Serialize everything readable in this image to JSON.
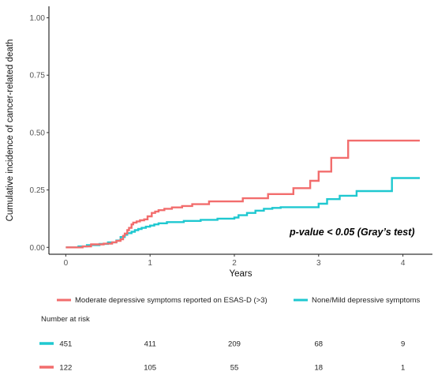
{
  "chart_data": {
    "type": "line",
    "step": true,
    "xlabel": "Years",
    "ylabel": "Cumulative incidence of cancer-related death",
    "xlim": [
      -0.2,
      4.35
    ],
    "ylim": [
      -0.03,
      1.05
    ],
    "x_ticks": [
      0,
      1,
      2,
      3,
      4
    ],
    "y_ticks": [
      0,
      0.25,
      0.5,
      0.75,
      1
    ],
    "y_tick_labels": [
      "0.00",
      "0.25",
      "0.50",
      "0.75",
      "1.00"
    ],
    "grid": false,
    "annotation": "p-value < 0.05 (Gray’s test)",
    "legend_position": "bottom",
    "series": [
      {
        "name": "Moderate depressive symptoms reported on ESAS-D (>3)",
        "color": "#f26d6d",
        "points": [
          [
            0,
            0
          ],
          [
            0.2,
            0.004
          ],
          [
            0.3,
            0.013
          ],
          [
            0.45,
            0.016
          ],
          [
            0.55,
            0.022
          ],
          [
            0.6,
            0.028
          ],
          [
            0.65,
            0.035
          ],
          [
            0.68,
            0.05
          ],
          [
            0.7,
            0.06
          ],
          [
            0.73,
            0.075
          ],
          [
            0.75,
            0.085
          ],
          [
            0.78,
            0.1
          ],
          [
            0.8,
            0.108
          ],
          [
            0.84,
            0.113
          ],
          [
            0.88,
            0.118
          ],
          [
            0.93,
            0.122
          ],
          [
            0.97,
            0.135
          ],
          [
            1.02,
            0.15
          ],
          [
            1.06,
            0.156
          ],
          [
            1.1,
            0.162
          ],
          [
            1.17,
            0.168
          ],
          [
            1.26,
            0.174
          ],
          [
            1.38,
            0.18
          ],
          [
            1.5,
            0.188
          ],
          [
            1.7,
            0.2
          ],
          [
            2.1,
            0.214
          ],
          [
            2.4,
            0.232
          ],
          [
            2.7,
            0.258
          ],
          [
            2.9,
            0.29
          ],
          [
            3.0,
            0.33
          ],
          [
            3.15,
            0.39
          ],
          [
            3.35,
            0.465
          ],
          [
            4.2,
            0.465
          ]
        ]
      },
      {
        "name": "None/Mild depressive symptoms",
        "color": "#1fc8d0",
        "points": [
          [
            0,
            0
          ],
          [
            0.15,
            0.004
          ],
          [
            0.25,
            0.01
          ],
          [
            0.4,
            0.015
          ],
          [
            0.5,
            0.022
          ],
          [
            0.6,
            0.03
          ],
          [
            0.65,
            0.045
          ],
          [
            0.7,
            0.055
          ],
          [
            0.73,
            0.062
          ],
          [
            0.78,
            0.068
          ],
          [
            0.82,
            0.075
          ],
          [
            0.86,
            0.08
          ],
          [
            0.9,
            0.085
          ],
          [
            0.95,
            0.09
          ],
          [
            1.0,
            0.095
          ],
          [
            1.05,
            0.1
          ],
          [
            1.1,
            0.105
          ],
          [
            1.2,
            0.11
          ],
          [
            1.4,
            0.115
          ],
          [
            1.6,
            0.12
          ],
          [
            1.8,
            0.125
          ],
          [
            2.0,
            0.13
          ],
          [
            2.05,
            0.14
          ],
          [
            2.15,
            0.15
          ],
          [
            2.25,
            0.16
          ],
          [
            2.35,
            0.168
          ],
          [
            2.45,
            0.172
          ],
          [
            2.55,
            0.175
          ],
          [
            2.95,
            0.175
          ],
          [
            3.0,
            0.19
          ],
          [
            3.1,
            0.21
          ],
          [
            3.25,
            0.225
          ],
          [
            3.45,
            0.245
          ],
          [
            3.85,
            0.245
          ],
          [
            3.87,
            0.302
          ],
          [
            4.2,
            0.302
          ]
        ]
      }
    ]
  },
  "risk_table": {
    "title": "Number at risk",
    "rows": [
      {
        "color": "#1fc8d0",
        "values": [
          "451",
          "411",
          "209",
          "68",
          "9"
        ]
      },
      {
        "color": "#f26d6d",
        "values": [
          "122",
          "105",
          "55",
          "18",
          "1"
        ]
      }
    ]
  }
}
